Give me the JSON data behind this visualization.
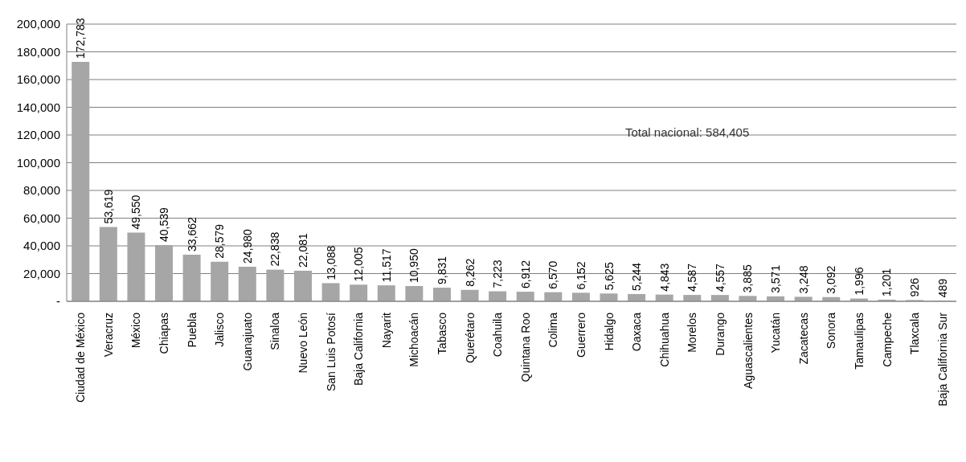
{
  "chart_data": {
    "type": "bar",
    "categories": [
      "Ciudad de México",
      "Veracruz",
      "México",
      "Chiapas",
      "Puebla",
      "Jalisco",
      "Guanajuato",
      "Sinaloa",
      "Nuevo León",
      "San Luis Potosí",
      "Baja California",
      "Nayarit",
      "Michoacán",
      "Tabasco",
      "Querétaro",
      "Coahuila",
      "Quintana Roo",
      "Colima",
      "Guerrero",
      "Hidalgo",
      "Oaxaca",
      "Chihuahua",
      "Morelos",
      "Durango",
      "Aguascalientes",
      "Yucatán",
      "Zacatecas",
      "Sonora",
      "Tamaulipas",
      "Campeche",
      "Tlaxcala",
      "Baja California Sur"
    ],
    "values": [
      172783,
      53619,
      49550,
      40539,
      33662,
      28579,
      24980,
      22838,
      22081,
      13088,
      12005,
      11517,
      10950,
      9831,
      8262,
      7223,
      6912,
      6570,
      6152,
      5625,
      5244,
      4843,
      4587,
      4557,
      3885,
      3571,
      3248,
      3092,
      1996,
      1201,
      926,
      489
    ],
    "color": "#a6a6a6",
    "ylim": [
      0,
      200000
    ],
    "yticks": [
      {
        "value": 0,
        "label": "-"
      },
      {
        "value": 20000,
        "label": "20,000"
      },
      {
        "value": 40000,
        "label": "40,000"
      },
      {
        "value": 60000,
        "label": "60,000"
      },
      {
        "value": 80000,
        "label": "80,000"
      },
      {
        "value": 100000,
        "label": "100,000"
      },
      {
        "value": 120000,
        "label": "120,000"
      },
      {
        "value": 140000,
        "label": "140,000"
      },
      {
        "value": 160000,
        "label": "160,000"
      },
      {
        "value": 180000,
        "label": "180,000"
      },
      {
        "value": 200000,
        "label": "200,000"
      }
    ],
    "grid": "y",
    "value_labels": [
      "172,783",
      "53,619",
      "49,550",
      "40,539",
      "33,662",
      "28,579",
      "24,980",
      "22,838",
      "22,081",
      "13,088",
      "12,005",
      "11,517",
      "10,950",
      "9,831",
      "8,262",
      "7,223",
      "6,912",
      "6,570",
      "6,152",
      "5,625",
      "5,244",
      "4,843",
      "4,587",
      "4,557",
      "3,885",
      "3,571",
      "3,248",
      "3,092",
      "1,996",
      "1,201",
      "926",
      "489"
    ],
    "annotations": [
      "Total nacional: 584,405"
    ]
  }
}
